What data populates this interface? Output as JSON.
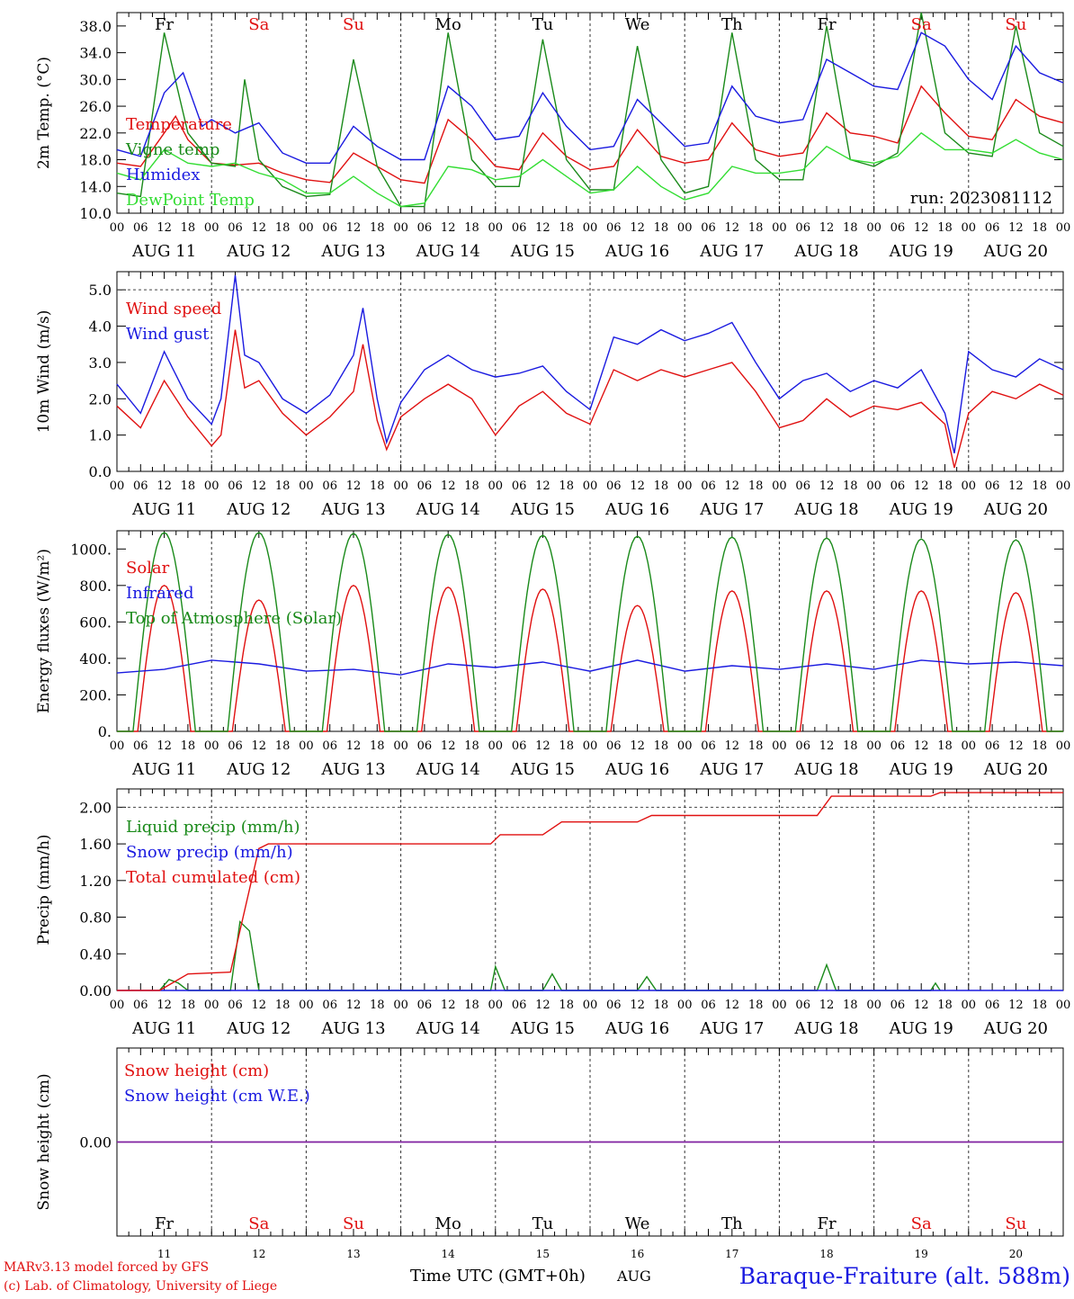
{
  "colors": {
    "red": "#e01010",
    "green_dark": "#1a8a1a",
    "green_light": "#33dd33",
    "blue": "#1a1ae0",
    "purple": "#8020a0",
    "black": "#000000"
  },
  "days": [
    {
      "abbr": "Fr",
      "label": "AUG 11",
      "num": "11",
      "weekend": false
    },
    {
      "abbr": "Sa",
      "label": "AUG 12",
      "num": "12",
      "weekend": true
    },
    {
      "abbr": "Su",
      "label": "AUG 13",
      "num": "13",
      "weekend": true
    },
    {
      "abbr": "Mo",
      "label": "AUG 14",
      "num": "14",
      "weekend": false
    },
    {
      "abbr": "Tu",
      "label": "AUG 15",
      "num": "15",
      "weekend": false
    },
    {
      "abbr": "We",
      "label": "AUG 16",
      "num": "16",
      "weekend": false
    },
    {
      "abbr": "Th",
      "label": "AUG 17",
      "num": "17",
      "weekend": false
    },
    {
      "abbr": "Fr",
      "label": "AUG 18",
      "num": "18",
      "weekend": false
    },
    {
      "abbr": "Sa",
      "label": "AUG 19",
      "num": "19",
      "weekend": true
    },
    {
      "abbr": "Su",
      "label": "AUG 20",
      "num": "20",
      "weekend": true
    }
  ],
  "hour_ticks": [
    "00",
    "06",
    "12",
    "18"
  ],
  "hour_end": "00",
  "run_label": "run: 2023081112",
  "footer": {
    "credit1": "MARv3.13 model forced by GFS",
    "credit2": "(c) Lab. of Climatology, University of Liege",
    "time_label": "Time UTC (GMT+0h)",
    "month": "AUG",
    "station": "Baraque-Fraiture (alt. 588m)"
  },
  "chart_data": [
    {
      "type": "line",
      "ylabel": "2m Temp. (°C)",
      "ylim": [
        10,
        40
      ],
      "yticks": [
        "10.0",
        "14.0",
        "18.0",
        "22.0",
        "26.0",
        "30.0",
        "34.0",
        "38.0"
      ],
      "x_unit": "day index (0 = AUG 11 00 UTC)",
      "series": [
        {
          "name": "Temperature",
          "color": "red",
          "x": [
            0,
            0.25,
            0.5,
            0.62,
            0.75,
            1,
            1.25,
            1.5,
            1.75,
            2,
            2.25,
            2.5,
            2.75,
            3,
            3.25,
            3.5,
            3.75,
            4,
            4.25,
            4.5,
            4.75,
            5,
            5.25,
            5.5,
            5.75,
            6,
            6.25,
            6.5,
            6.75,
            7,
            7.25,
            7.5,
            7.75,
            8,
            8.25,
            8.5,
            8.75,
            9,
            9.25,
            9.5,
            9.75,
            10
          ],
          "y": [
            17.5,
            17,
            22,
            24.5,
            21,
            17.5,
            17.2,
            17.5,
            16,
            15,
            14.6,
            19,
            17,
            15,
            14.5,
            24,
            21,
            17,
            16.5,
            22,
            18.5,
            16.5,
            17,
            22.5,
            18.5,
            17.5,
            18,
            23.5,
            19.5,
            18.5,
            19,
            25,
            22,
            21.5,
            20.5,
            29,
            25,
            21.5,
            21,
            27,
            24.5,
            23.5
          ]
        },
        {
          "name": "Vigne temp",
          "color": "green_dark",
          "x": [
            0,
            0.25,
            0.5,
            0.75,
            1,
            1.25,
            1.35,
            1.5,
            1.75,
            2,
            2.25,
            2.5,
            2.75,
            3,
            3.25,
            3.5,
            3.75,
            4,
            4.25,
            4.5,
            4.75,
            5,
            5.25,
            5.5,
            5.75,
            6,
            6.25,
            6.5,
            6.75,
            7,
            7.25,
            7.5,
            7.75,
            8,
            8.25,
            8.5,
            8.75,
            9,
            9.25,
            9.5,
            9.75,
            10
          ],
          "y": [
            13,
            12.5,
            37,
            22,
            17.5,
            17,
            30,
            18,
            14,
            12.5,
            12.8,
            33,
            17,
            11,
            11,
            37,
            18,
            14,
            14,
            36,
            18,
            13.5,
            13.5,
            35,
            18,
            13,
            14,
            37,
            18,
            15,
            15,
            38,
            18,
            17,
            19,
            40,
            22,
            19,
            18.5,
            38,
            22,
            20
          ]
        },
        {
          "name": "Humidex",
          "color": "blue",
          "x": [
            0,
            0.25,
            0.5,
            0.7,
            0.9,
            1,
            1.25,
            1.5,
            1.75,
            2,
            2.25,
            2.5,
            2.75,
            3,
            3.25,
            3.5,
            3.75,
            4,
            4.25,
            4.5,
            4.75,
            5,
            5.25,
            5.5,
            5.75,
            6,
            6.25,
            6.5,
            6.75,
            7,
            7.25,
            7.5,
            7.75,
            8,
            8.25,
            8.5,
            8.75,
            9,
            9.25,
            9.5,
            9.75,
            10
          ],
          "y": [
            19.5,
            18.5,
            28,
            31,
            23,
            24,
            22,
            23.5,
            19,
            17.5,
            17.5,
            23,
            20,
            18,
            18,
            29,
            26,
            21,
            21.5,
            28,
            23,
            19.5,
            20,
            27,
            23.5,
            20,
            20.5,
            29,
            24.5,
            23.5,
            24,
            33,
            31,
            29,
            28.5,
            37,
            35,
            30,
            27,
            35,
            31,
            29.5
          ]
        },
        {
          "name": "DewPoint Temp",
          "color": "green_light",
          "x": [
            0,
            0.25,
            0.5,
            0.75,
            1,
            1.25,
            1.5,
            1.75,
            2,
            2.25,
            2.5,
            2.75,
            3,
            3.25,
            3.5,
            3.75,
            4,
            4.25,
            4.5,
            4.75,
            5,
            5.25,
            5.5,
            5.75,
            6,
            6.25,
            6.5,
            6.75,
            7,
            7.25,
            7.5,
            7.75,
            8,
            8.25,
            8.5,
            8.75,
            9,
            9.25,
            9.5,
            9.75,
            10
          ],
          "y": [
            16,
            15,
            19.5,
            17.5,
            17,
            17.5,
            16,
            15,
            13,
            13,
            15.5,
            13,
            11,
            11.5,
            17,
            16.5,
            15,
            15.5,
            18,
            15.5,
            13,
            13.5,
            17,
            14,
            12,
            13,
            17,
            16,
            16,
            16.5,
            20,
            18,
            17.5,
            18.5,
            22,
            19.5,
            19.5,
            19,
            21,
            19,
            18
          ]
        }
      ]
    },
    {
      "type": "line",
      "ylabel": "10m Wind (m/s)",
      "ylim": [
        0,
        5.5
      ],
      "yticks": [
        "0.0",
        "1.0",
        "2.0",
        "3.0",
        "4.0",
        "5.0"
      ],
      "series": [
        {
          "name": "Wind speed",
          "color": "red",
          "x": [
            0,
            0.25,
            0.5,
            0.75,
            1,
            1.1,
            1.25,
            1.35,
            1.5,
            1.75,
            2,
            2.25,
            2.5,
            2.6,
            2.75,
            2.85,
            3,
            3.25,
            3.5,
            3.75,
            4,
            4.25,
            4.5,
            4.75,
            5,
            5.25,
            5.5,
            5.75,
            6,
            6.25,
            6.5,
            6.75,
            7,
            7.25,
            7.5,
            7.75,
            8,
            8.25,
            8.5,
            8.75,
            8.85,
            9,
            9.25,
            9.5,
            9.75,
            10
          ],
          "y": [
            1.8,
            1.2,
            2.5,
            1.5,
            0.7,
            1.0,
            3.9,
            2.3,
            2.5,
            1.6,
            1.0,
            1.5,
            2.2,
            3.5,
            1.4,
            0.6,
            1.5,
            2.0,
            2.4,
            2.0,
            1.0,
            1.8,
            2.2,
            1.6,
            1.3,
            2.8,
            2.5,
            2.8,
            2.6,
            2.8,
            3.0,
            2.2,
            1.2,
            1.4,
            2.0,
            1.5,
            1.8,
            1.7,
            1.9,
            1.3,
            0.1,
            1.6,
            2.2,
            2.0,
            2.4,
            2.1
          ]
        },
        {
          "name": "Wind gust",
          "color": "blue",
          "x": [
            0,
            0.25,
            0.5,
            0.75,
            1,
            1.1,
            1.25,
            1.35,
            1.5,
            1.75,
            2,
            2.25,
            2.5,
            2.6,
            2.75,
            2.85,
            3,
            3.25,
            3.5,
            3.75,
            4,
            4.25,
            4.5,
            4.75,
            5,
            5.25,
            5.5,
            5.75,
            6,
            6.25,
            6.5,
            6.75,
            7,
            7.25,
            7.5,
            7.75,
            8,
            8.25,
            8.5,
            8.75,
            8.85,
            9,
            9.25,
            9.5,
            9.75,
            10
          ],
          "y": [
            2.4,
            1.6,
            3.3,
            2.0,
            1.3,
            2.0,
            5.4,
            3.2,
            3.0,
            2.0,
            1.6,
            2.1,
            3.2,
            4.5,
            2.0,
            0.8,
            1.9,
            2.8,
            3.2,
            2.8,
            2.6,
            2.7,
            2.9,
            2.2,
            1.7,
            3.7,
            3.5,
            3.9,
            3.6,
            3.8,
            4.1,
            3.0,
            2.0,
            2.5,
            2.7,
            2.2,
            2.5,
            2.3,
            2.8,
            1.6,
            0.5,
            3.3,
            2.8,
            2.6,
            3.1,
            2.8
          ]
        }
      ]
    },
    {
      "type": "line",
      "ylabel": "Energy fluxes (W/m²)",
      "ylim": [
        0,
        1100
      ],
      "yticks": [
        "0.",
        "200.",
        "400.",
        "600.",
        "800.",
        "1000."
      ],
      "series": [
        {
          "name": "Solar",
          "color": "red",
          "peaks": [
            800,
            720,
            800,
            790,
            780,
            690,
            770,
            770,
            770,
            760
          ]
        },
        {
          "name": "Infrared",
          "color": "blue",
          "x": [
            0,
            0.5,
            1,
            1.5,
            2,
            2.5,
            3,
            3.5,
            4,
            4.5,
            5,
            5.5,
            6,
            6.5,
            7,
            7.5,
            8,
            8.5,
            9,
            9.5,
            10
          ],
          "y": [
            320,
            340,
            390,
            370,
            330,
            340,
            310,
            370,
            350,
            380,
            330,
            390,
            330,
            360,
            340,
            370,
            340,
            390,
            370,
            380,
            360
          ]
        },
        {
          "name": "Top of Atmosphere (Solar)",
          "color": "green_dark",
          "peaks": [
            1090,
            1090,
            1085,
            1080,
            1075,
            1070,
            1065,
            1060,
            1055,
            1050
          ]
        }
      ]
    },
    {
      "type": "line",
      "ylabel": "Precip (mm/h)",
      "ylim": [
        0,
        2.2
      ],
      "yticks": [
        "0.00",
        "0.40",
        "0.80",
        "1.20",
        "1.60",
        "2.00"
      ],
      "series": [
        {
          "name": "Liquid precip (mm/h)",
          "color": "green_dark",
          "x": [
            0.45,
            0.55,
            0.65,
            0.75,
            1.2,
            1.3,
            1.4,
            1.5,
            3.95,
            4,
            4.1,
            4.5,
            4.6,
            4.7,
            5.5,
            5.6,
            5.7,
            7.4,
            7.5,
            7.6,
            8.6,
            8.65,
            8.7
          ],
          "y": [
            0,
            0.12,
            0.08,
            0,
            0,
            0.75,
            0.65,
            0,
            0,
            0.26,
            0,
            0,
            0.18,
            0,
            0,
            0.15,
            0,
            0,
            0.28,
            0,
            0,
            0.08,
            0
          ]
        },
        {
          "name": "Snow precip (mm/h)",
          "color": "blue",
          "x": [
            0,
            10
          ],
          "y": [
            0,
            0
          ]
        },
        {
          "name": "Total cumulated (cm)",
          "color": "red",
          "x": [
            0,
            0.45,
            0.75,
            1.2,
            1.5,
            1.6,
            3.95,
            4.05,
            4.5,
            4.7,
            5.5,
            5.65,
            7.4,
            7.55,
            8.6,
            8.7,
            10
          ],
          "y": [
            0,
            0,
            0.18,
            0.2,
            1.55,
            1.6,
            1.6,
            1.7,
            1.7,
            1.84,
            1.84,
            1.91,
            1.91,
            2.12,
            2.12,
            2.16,
            2.16
          ]
        }
      ]
    },
    {
      "type": "line",
      "ylabel": "Snow height (cm)",
      "yticks": [
        "0.00"
      ],
      "series": [
        {
          "name": "Snow height (cm)",
          "color": "red",
          "x": [
            0,
            10
          ],
          "y": [
            0,
            0
          ]
        },
        {
          "name": "Snow height (cm W.E.)",
          "color": "blue",
          "x": [
            0,
            10
          ],
          "y": [
            0,
            0
          ]
        }
      ]
    }
  ]
}
